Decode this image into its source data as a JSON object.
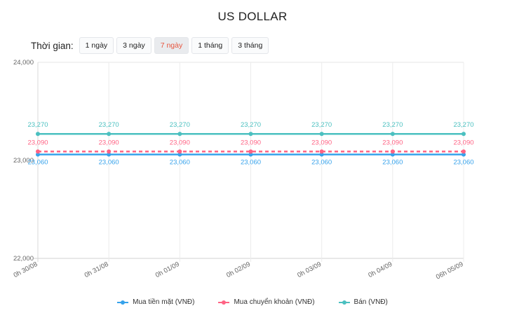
{
  "title": "US DOLLAR",
  "filter": {
    "label": "Thời gian:",
    "options": [
      "1 ngày",
      "3 ngày",
      "7 ngày",
      "1 tháng",
      "3 tháng"
    ],
    "active_index": 2
  },
  "legend": [
    {
      "label": "Mua tiền mặt (VNĐ)",
      "color": "#36a2eb"
    },
    {
      "label": "Mua chuyển khoản (VNĐ)",
      "color": "#ff6384"
    },
    {
      "label": "Bán (VNĐ)",
      "color": "#4bc0c0"
    }
  ],
  "chart_data": {
    "type": "line",
    "title": "US DOLLAR",
    "xlabel": "",
    "ylabel": "",
    "x": [
      "0h 30/08",
      "0h 31/08",
      "0h 01/09",
      "0h 02/09",
      "0h 03/09",
      "0h 04/09",
      "06h 05/09"
    ],
    "y_ticks": [
      "24,000",
      "23,000",
      "22,000"
    ],
    "ylim": [
      22000,
      24000
    ],
    "grid": true,
    "legend_position": "bottom",
    "series": [
      {
        "name": "Mua tiền mặt (VNĐ)",
        "color": "#36a2eb",
        "style": "solid",
        "values": [
          23060,
          23060,
          23060,
          23060,
          23060,
          23060,
          23060
        ],
        "labels": [
          "23,060",
          "23,060",
          "23,060",
          "23,060",
          "23,060",
          "23,060",
          "23,060"
        ]
      },
      {
        "name": "Mua chuyển khoản (VNĐ)",
        "color": "#ff6384",
        "style": "dashed",
        "values": [
          23090,
          23090,
          23090,
          23090,
          23090,
          23090,
          23090
        ],
        "labels": [
          "23,090",
          "23,090",
          "23,090",
          "23,090",
          "23,090",
          "23,090",
          "23,090"
        ]
      },
      {
        "name": "Bán (VNĐ)",
        "color": "#4bc0c0",
        "style": "solid",
        "values": [
          23270,
          23270,
          23270,
          23270,
          23270,
          23270,
          23270
        ],
        "labels": [
          "23,270",
          "23,270",
          "23,270",
          "23,270",
          "23,270",
          "23,270",
          "23,270"
        ]
      }
    ]
  }
}
